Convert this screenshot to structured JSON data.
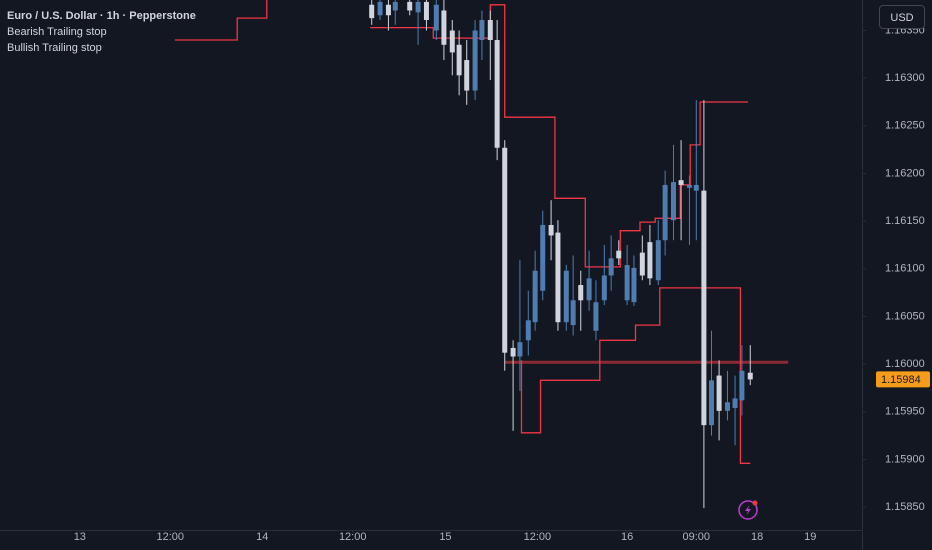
{
  "chart_data": {
    "type": "candlestick",
    "title": "Euro / U.S. Dollar · 1h · Pepperstone",
    "currency": "USD",
    "up_color": "#4f7db0",
    "down_color": "#d1d4dc",
    "x": [
      48.9,
      50.0,
      51.1,
      52.0,
      53.9,
      55.0,
      56.1,
      57.4,
      58.4,
      59.5,
      60.4,
      61.4,
      62.5,
      63.4,
      64.5,
      65.4,
      66.4,
      67.5,
      68.4,
      69.5,
      70.4,
      71.4,
      72.5,
      73.4,
      74.5,
      75.4,
      76.4,
      77.5,
      78.4,
      79.5,
      80.4,
      81.4,
      82.5,
      83.4,
      84.5,
      85.5,
      86.6,
      87.5,
      88.6,
      89.6,
      90.7,
      91.6,
      92.6,
      93.6,
      94.6,
      95.7,
      96.7,
      97.6,
      98.7
    ],
    "open": [
      1.16377,
      1.16366,
      1.16377,
      1.16371,
      1.1638,
      1.16369,
      1.1638,
      1.1635,
      1.16371,
      1.1635,
      1.16335,
      1.16319,
      1.16287,
      1.1634,
      1.16361,
      1.1634,
      1.16227,
      1.16017,
      1.16008,
      1.16025,
      1.16044,
      1.16077,
      1.16146,
      1.16138,
      1.16044,
      1.16041,
      1.16083,
      1.16067,
      1.16035,
      1.16067,
      1.16093,
      1.16119,
      1.16067,
      1.16065,
      1.16117,
      1.16128,
      1.16088,
      1.1613,
      1.16151,
      1.16193,
      1.16185,
      1.16182,
      1.16182,
      1.15936,
      1.15988,
      1.15951,
      1.15954,
      1.15962,
      1.15991
    ],
    "high": [
      1.16382,
      1.16382,
      1.16382,
      1.16382,
      1.16382,
      1.16382,
      1.16382,
      1.16382,
      1.16382,
      1.16361,
      1.1635,
      1.1634,
      1.16361,
      1.16371,
      1.16371,
      1.16361,
      1.16235,
      1.16025,
      1.16109,
      1.16077,
      1.16119,
      1.16161,
      1.16172,
      1.16151,
      1.16104,
      1.16114,
      1.16098,
      1.16119,
      1.16088,
      1.16125,
      1.16135,
      1.1613,
      1.16125,
      1.16114,
      1.16135,
      1.16146,
      1.16151,
      1.16203,
      1.1623,
      1.16235,
      1.16198,
      1.16277,
      1.16277,
      1.16035,
      1.16004,
      1.15993,
      1.15988,
      1.1602,
      1.1602
    ],
    "low": [
      1.16356,
      1.16361,
      1.1635,
      1.16356,
      1.16366,
      1.16335,
      1.1635,
      1.1634,
      1.16319,
      1.16303,
      1.16282,
      1.16272,
      1.16277,
      1.16319,
      1.16298,
      1.16214,
      1.15993,
      1.1593,
      1.15972,
      1.16009,
      1.16035,
      1.16067,
      1.16109,
      1.16035,
      1.16035,
      1.1603,
      1.16035,
      1.16056,
      1.16025,
      1.16062,
      1.16077,
      1.16104,
      1.16062,
      1.16061,
      1.16088,
      1.16083,
      1.16083,
      1.16114,
      1.1613,
      1.1613,
      1.16125,
      1.1613,
      1.15849,
      1.15925,
      1.1592,
      1.15941,
      1.15915,
      1.15946,
      1.15978
    ],
    "close": [
      1.16363,
      1.1638,
      1.16366,
      1.1638,
      1.16371,
      1.1638,
      1.16361,
      1.16377,
      1.16335,
      1.16327,
      1.16303,
      1.16287,
      1.1635,
      1.16361,
      1.1634,
      1.16227,
      1.16012,
      1.16008,
      1.16023,
      1.16046,
      1.16098,
      1.16146,
      1.16135,
      1.16044,
      1.16098,
      1.16067,
      1.16067,
      1.1609,
      1.16065,
      1.16093,
      1.16111,
      1.16111,
      1.16104,
      1.16101,
      1.16093,
      1.1609,
      1.1613,
      1.16188,
      1.16191,
      1.16188,
      1.16188,
      1.16188,
      1.15936,
      1.15983,
      1.15951,
      1.1596,
      1.15964,
      1.15993,
      1.15984
    ],
    "series": [
      {
        "name": "Bearish Trailing stop",
        "color": "#f23645",
        "x": [
          23.0,
          31.2,
          31.2,
          35.1,
          35.1,
          null,
          48.7,
          57.0,
          57.0,
          64.5,
          64.5,
          66.4,
          66.4,
          73.0,
          73.0,
          77.0,
          77.0,
          81.6,
          81.6,
          84.2,
          84.2,
          86.2,
          86.2,
          89.5,
          89.5,
          90.8,
          90.8,
          92.1,
          92.1,
          98.4
        ],
        "values": [
          1.1634,
          1.1634,
          1.16363,
          1.16363,
          1.16382,
          null,
          1.16353,
          1.16353,
          1.16342,
          1.16342,
          1.16377,
          1.16377,
          1.16259,
          1.16259,
          1.16174,
          1.16174,
          1.16102,
          1.16102,
          1.1614,
          1.1614,
          1.16149,
          1.16149,
          1.16153,
          1.16153,
          1.16188,
          1.16188,
          1.1623,
          1.1623,
          1.16275,
          1.16275
        ]
      },
      {
        "name": "Bullish Trailing stop",
        "color": "#f23645",
        "x": [
          68.6,
          68.6,
          71.1,
          71.1,
          78.9,
          78.9,
          83.6,
          83.6,
          86.8,
          86.8,
          97.4,
          97.4,
          98.7
        ],
        "values": [
          1.16004,
          1.15928,
          1.15928,
          1.15983,
          1.15983,
          1.16025,
          1.16025,
          1.16041,
          1.16041,
          1.1608,
          1.1608,
          1.15896,
          1.15896
        ]
      }
    ],
    "hline": {
      "value": 1.16002,
      "x": [
        66.4,
        103.7
      ],
      "color": "#8c2a34"
    },
    "last_price": 1.15984,
    "last_price_color": "#f59d1b",
    "xlim": [
      0,
      113.4
    ],
    "ylim": [
      1.15826,
      1.16382
    ],
    "xticks": [
      {
        "value": 10.5,
        "label": "13"
      },
      {
        "value": 22.4,
        "label": "12:00"
      },
      {
        "value": 34.5,
        "label": "14"
      },
      {
        "value": 46.4,
        "label": "12:00"
      },
      {
        "value": 58.6,
        "label": "15"
      },
      {
        "value": 70.7,
        "label": "12:00"
      },
      {
        "value": 82.5,
        "label": "16"
      },
      {
        "value": 91.6,
        "label": "09:00"
      },
      {
        "value": 99.6,
        "label": "18"
      },
      {
        "value": 106.6,
        "label": "19"
      }
    ],
    "yticks": [
      {
        "value": 1.1585,
        "label": "1.15850"
      },
      {
        "value": 1.159,
        "label": "1.15900"
      },
      {
        "value": 1.1595,
        "label": "1.15950"
      },
      {
        "value": 1.16,
        "label": "1.16000"
      },
      {
        "value": 1.1605,
        "label": "1.16050"
      },
      {
        "value": 1.161,
        "label": "1.16100"
      },
      {
        "value": 1.1615,
        "label": "1.16150"
      },
      {
        "value": 1.162,
        "label": "1.16200"
      },
      {
        "value": 1.1625,
        "label": "1.16250"
      },
      {
        "value": 1.163,
        "label": "1.16300"
      },
      {
        "value": 1.1635,
        "label": "1.16350"
      }
    ]
  }
}
